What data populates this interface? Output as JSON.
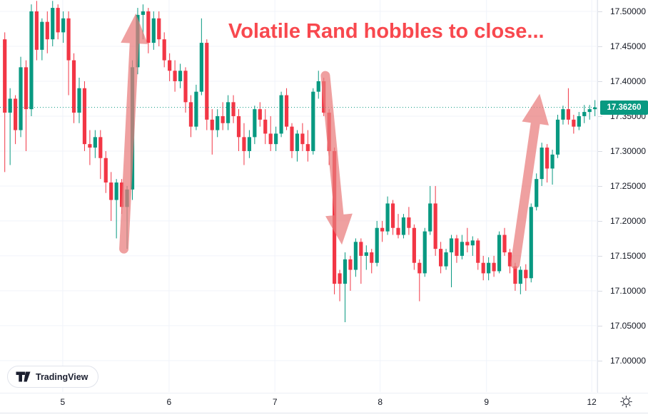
{
  "title": {
    "text": "Volatile Rand hobbles to close...",
    "color": "#f8484e"
  },
  "logo": {
    "label": "TradingView",
    "icon": "tradingview-logo-mark"
  },
  "icons": {
    "gear": "gear-icon"
  },
  "last_price": {
    "text": "17.36260",
    "value": 17.3626,
    "color": "#089981"
  },
  "axes": {
    "price_labels": [
      {
        "text": "17.50000",
        "value": 17.5
      },
      {
        "text": "17.45000",
        "value": 17.45
      },
      {
        "text": "17.40000",
        "value": 17.4
      },
      {
        "text": "17.35000",
        "value": 17.35
      },
      {
        "text": "17.30000",
        "value": 17.3
      },
      {
        "text": "17.25000",
        "value": 17.25
      },
      {
        "text": "17.20000",
        "value": 17.2
      },
      {
        "text": "17.15000",
        "value": 17.15
      },
      {
        "text": "17.10000",
        "value": 17.1
      },
      {
        "text": "17.05000",
        "value": 17.05
      },
      {
        "text": "17.00000",
        "value": 17.0
      }
    ],
    "time_labels": [
      {
        "text": "5",
        "index": 10.9
      },
      {
        "text": "6",
        "index": 30.9
      },
      {
        "text": "7",
        "index": 50.8
      },
      {
        "text": "8",
        "index": 70.6
      },
      {
        "text": "9",
        "index": 90.6
      },
      {
        "text": "12",
        "index": 110.4
      }
    ]
  },
  "chart_data": {
    "type": "candlestick",
    "title": "Volatile Rand hobbles to close...",
    "xlabel": "",
    "ylabel": "",
    "x_day_labels": [
      "5",
      "6",
      "7",
      "8",
      "9",
      "12"
    ],
    "ylim": [
      16.955,
      17.5163
    ],
    "grid": true,
    "last_price": 17.3626,
    "up_color": "#089981",
    "down_color": "#f23645",
    "grid_color": "#f0f3fa",
    "axis_text_color": "#131722",
    "border_color": "#e0e3eb",
    "candles": [
      [
        17.46,
        17.47,
        17.27,
        17.355
      ],
      [
        17.355,
        17.39,
        17.28,
        17.375
      ],
      [
        17.375,
        17.38,
        17.31,
        17.33
      ],
      [
        17.33,
        17.435,
        17.32,
        17.42
      ],
      [
        17.42,
        17.43,
        17.3,
        17.36
      ],
      [
        17.36,
        17.51,
        17.35,
        17.5
      ],
      [
        17.5,
        17.515,
        17.43,
        17.445
      ],
      [
        17.445,
        17.49,
        17.43,
        17.485
      ],
      [
        17.485,
        17.5,
        17.44,
        17.46
      ],
      [
        17.46,
        17.515,
        17.45,
        17.505
      ],
      [
        17.505,
        17.51,
        17.46,
        17.47
      ],
      [
        17.47,
        17.5,
        17.455,
        17.49
      ],
      [
        17.49,
        17.5,
        17.38,
        17.43
      ],
      [
        17.43,
        17.44,
        17.34,
        17.355
      ],
      [
        17.355,
        17.405,
        17.34,
        17.39
      ],
      [
        17.39,
        17.4,
        17.3,
        17.31
      ],
      [
        17.31,
        17.33,
        17.28,
        17.305
      ],
      [
        17.305,
        17.33,
        17.29,
        17.32
      ],
      [
        17.32,
        17.33,
        17.26,
        17.29
      ],
      [
        17.29,
        17.3,
        17.24,
        17.255
      ],
      [
        17.255,
        17.27,
        17.2,
        17.23
      ],
      [
        17.23,
        17.26,
        17.175,
        17.255
      ],
      [
        17.255,
        17.26,
        17.21,
        17.22
      ],
      [
        17.22,
        17.25,
        17.16,
        17.245
      ],
      [
        17.245,
        17.43,
        17.23,
        17.42
      ],
      [
        17.42,
        17.505,
        17.41,
        17.495
      ],
      [
        17.495,
        17.51,
        17.46,
        17.5
      ],
      [
        17.5,
        17.505,
        17.44,
        17.455
      ],
      [
        17.455,
        17.5,
        17.445,
        17.49
      ],
      [
        17.49,
        17.5,
        17.45,
        17.46
      ],
      [
        17.46,
        17.47,
        17.42,
        17.43
      ],
      [
        17.43,
        17.44,
        17.4,
        17.415
      ],
      [
        17.415,
        17.43,
        17.385,
        17.4
      ],
      [
        17.4,
        17.425,
        17.39,
        17.415
      ],
      [
        17.415,
        17.42,
        17.355,
        17.37
      ],
      [
        17.37,
        17.38,
        17.32,
        17.335
      ],
      [
        17.335,
        17.395,
        17.33,
        17.385
      ],
      [
        17.385,
        17.49,
        17.38,
        17.455
      ],
      [
        17.455,
        17.46,
        17.33,
        17.345
      ],
      [
        17.345,
        17.36,
        17.295,
        17.33
      ],
      [
        17.33,
        17.36,
        17.32,
        17.35
      ],
      [
        17.35,
        17.37,
        17.33,
        17.34
      ],
      [
        17.34,
        17.38,
        17.33,
        17.37
      ],
      [
        17.37,
        17.38,
        17.34,
        17.35
      ],
      [
        17.35,
        17.36,
        17.3,
        17.32
      ],
      [
        17.32,
        17.34,
        17.28,
        17.3
      ],
      [
        17.3,
        17.33,
        17.29,
        17.32
      ],
      [
        17.32,
        17.365,
        17.31,
        17.36
      ],
      [
        17.36,
        17.37,
        17.335,
        17.345
      ],
      [
        17.345,
        17.36,
        17.31,
        17.325
      ],
      [
        17.325,
        17.35,
        17.3,
        17.31
      ],
      [
        17.31,
        17.335,
        17.3,
        17.325
      ],
      [
        17.325,
        17.385,
        17.32,
        17.38
      ],
      [
        17.38,
        17.39,
        17.33,
        17.335
      ],
      [
        17.335,
        17.34,
        17.29,
        17.3
      ],
      [
        17.3,
        17.33,
        17.285,
        17.325
      ],
      [
        17.325,
        17.34,
        17.3,
        17.31
      ],
      [
        17.31,
        17.33,
        17.285,
        17.3
      ],
      [
        17.3,
        17.39,
        17.295,
        17.385
      ],
      [
        17.385,
        17.415,
        17.375,
        17.4
      ],
      [
        17.4,
        17.405,
        17.35,
        17.355
      ],
      [
        17.355,
        17.36,
        17.28,
        17.3
      ],
      [
        17.3,
        17.305,
        17.095,
        17.11
      ],
      [
        17.125,
        17.13,
        17.085,
        17.11
      ],
      [
        17.11,
        17.155,
        17.055,
        17.145
      ],
      [
        17.145,
        17.15,
        17.1,
        17.13
      ],
      [
        17.13,
        17.175,
        17.12,
        17.17
      ],
      [
        17.17,
        17.175,
        17.11,
        17.15
      ],
      [
        17.15,
        17.165,
        17.13,
        17.155
      ],
      [
        17.155,
        17.16,
        17.125,
        17.14
      ],
      [
        17.14,
        17.2,
        17.135,
        17.19
      ],
      [
        17.19,
        17.2,
        17.17,
        17.185
      ],
      [
        17.185,
        17.235,
        17.18,
        17.225
      ],
      [
        17.225,
        17.23,
        17.18,
        17.19
      ],
      [
        17.19,
        17.21,
        17.175,
        17.18
      ],
      [
        17.18,
        17.21,
        17.175,
        17.205
      ],
      [
        17.205,
        17.22,
        17.18,
        17.19
      ],
      [
        17.19,
        17.195,
        17.13,
        17.14
      ],
      [
        17.14,
        17.145,
        17.085,
        17.125
      ],
      [
        17.125,
        17.19,
        17.12,
        17.185
      ],
      [
        17.185,
        17.25,
        17.18,
        17.225
      ],
      [
        17.225,
        17.25,
        17.15,
        17.16
      ],
      [
        17.16,
        17.17,
        17.125,
        17.135
      ],
      [
        17.135,
        17.16,
        17.13,
        17.155
      ],
      [
        17.155,
        17.18,
        17.105,
        17.175
      ],
      [
        17.175,
        17.18,
        17.14,
        17.15
      ],
      [
        17.15,
        17.18,
        17.145,
        17.17
      ],
      [
        17.17,
        17.19,
        17.155,
        17.165
      ],
      [
        17.165,
        17.178,
        17.15,
        17.172
      ],
      [
        17.172,
        17.175,
        17.13,
        17.14
      ],
      [
        17.14,
        17.15,
        17.115,
        17.125
      ],
      [
        17.125,
        17.148,
        17.115,
        17.14
      ],
      [
        17.14,
        17.15,
        17.12,
        17.128
      ],
      [
        17.128,
        17.185,
        17.125,
        17.18
      ],
      [
        17.18,
        17.19,
        17.15,
        17.155
      ],
      [
        17.155,
        17.16,
        17.125,
        17.135
      ],
      [
        17.135,
        17.14,
        17.1,
        17.11
      ],
      [
        17.11,
        17.135,
        17.095,
        17.13
      ],
      [
        17.13,
        17.138,
        17.1,
        17.118
      ],
      [
        17.118,
        17.225,
        17.112,
        17.22
      ],
      [
        17.22,
        17.268,
        17.215,
        17.26
      ],
      [
        17.26,
        17.312,
        17.25,
        17.305
      ],
      [
        17.305,
        17.31,
        17.255,
        17.275
      ],
      [
        17.275,
        17.302,
        17.252,
        17.295
      ],
      [
        17.295,
        17.352,
        17.29,
        17.345
      ],
      [
        17.345,
        17.365,
        17.338,
        17.36
      ],
      [
        17.36,
        17.39,
        17.338,
        17.345
      ],
      [
        17.345,
        17.352,
        17.325,
        17.335
      ],
      [
        17.335,
        17.356,
        17.33,
        17.35
      ],
      [
        17.35,
        17.366,
        17.34,
        17.356
      ],
      [
        17.356,
        17.366,
        17.345,
        17.36
      ],
      [
        17.36,
        17.373,
        17.35,
        17.3626
      ]
    ],
    "annotations": {
      "headline": "Volatile Rand hobbles to close...",
      "arrow_color": "#e97c7c",
      "arrows": [
        {
          "dir": "up",
          "from": {
            "index": 22.4,
            "price": 17.16
          },
          "to": {
            "index": 24.65,
            "price": 17.497
          }
        },
        {
          "dir": "down",
          "from": {
            "index": 60.3,
            "price": 17.408
          },
          "to": {
            "index": 63.4,
            "price": 17.166
          }
        },
        {
          "dir": "up",
          "from": {
            "index": 96.0,
            "price": 17.138
          },
          "to": {
            "index": 100.6,
            "price": 17.382
          }
        }
      ]
    }
  }
}
